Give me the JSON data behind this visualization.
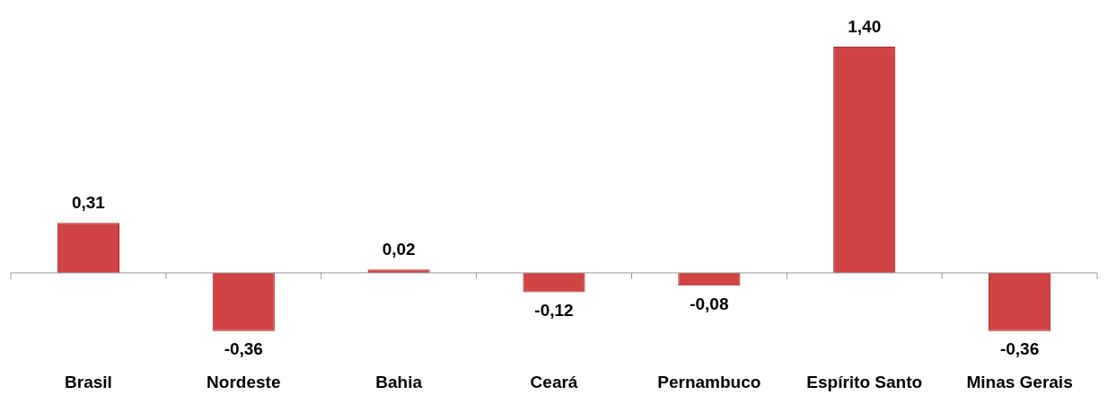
{
  "chart_data": {
    "type": "bar",
    "categories": [
      "Brasil",
      "Nordeste",
      "Bahia",
      "Ceará",
      "Pernambuco",
      "Espírito Santo",
      "Minas Gerais"
    ],
    "values": [
      0.31,
      -0.36,
      0.02,
      -0.12,
      -0.08,
      1.4,
      -0.36
    ],
    "value_labels": [
      "0,31",
      "-0,36",
      "0,02",
      "-0,12",
      "-0,08",
      "1,40",
      "-0,36"
    ],
    "color": "#d04444",
    "grid": false,
    "legend": false
  }
}
